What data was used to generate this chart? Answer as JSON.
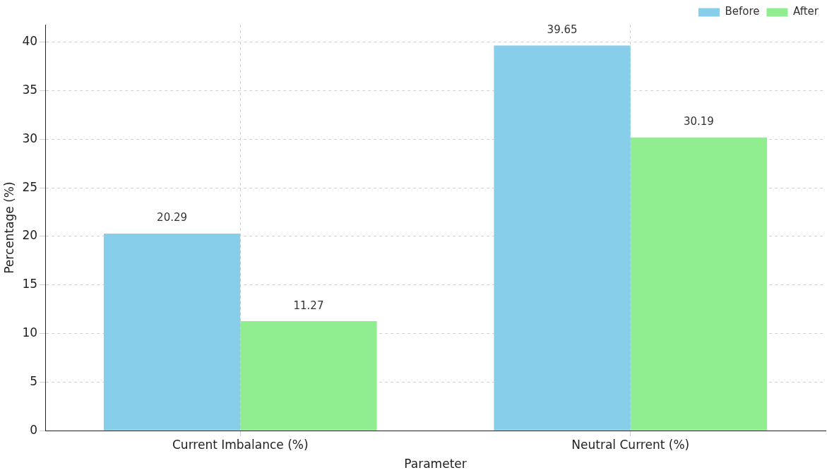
{
  "chart_data": {
    "type": "bar",
    "xlabel": "Parameter",
    "ylabel": "Percentage (%)",
    "categories": [
      "Current Imbalance (%)",
      "Neutral Current (%)"
    ],
    "series": [
      {
        "name": "Before",
        "color": "#87ceeb",
        "values": [
          20.29,
          39.65
        ]
      },
      {
        "name": "After",
        "color": "#90ee90",
        "values": [
          11.27,
          30.19
        ]
      }
    ],
    "ylim": [
      0,
      41.8
    ],
    "yticks": [
      0,
      5,
      10,
      15,
      20,
      25,
      30,
      35,
      40
    ],
    "grid": true,
    "legend": "top right",
    "data_labels": true
  }
}
